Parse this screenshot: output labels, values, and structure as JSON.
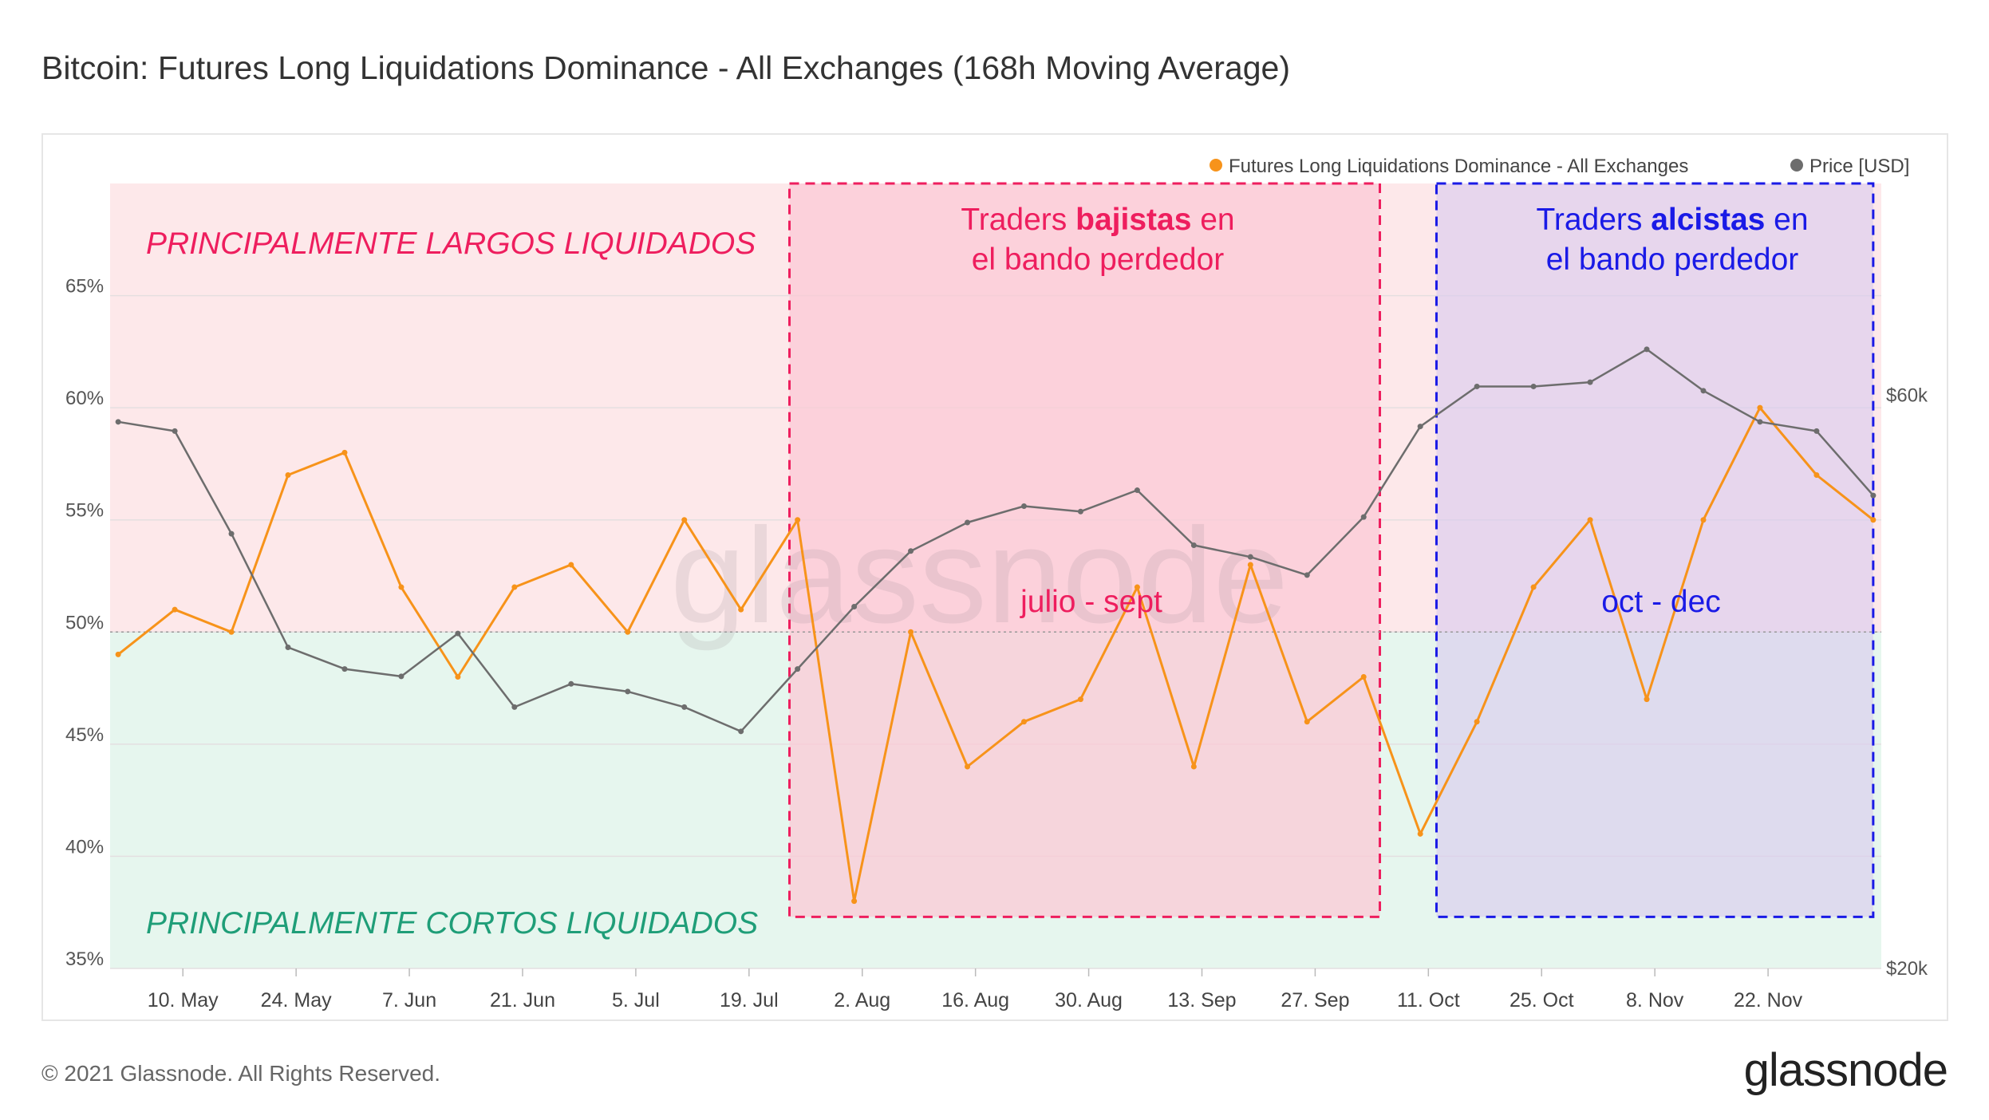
{
  "title": "Bitcoin: Futures Long Liquidations Dominance - All Exchanges (168h Moving Average)",
  "footer": "© 2021 Glassnode. All Rights Reserved.",
  "brand": "glassnode",
  "watermark": "glassnode",
  "colors": {
    "dominance": "#f7931a",
    "price": "#6d6d6d",
    "top_zone": "#fde8ea",
    "bottom_zone": "#e6f6ee",
    "bear_box_fill": "#fbcad6",
    "bear_box_border": "#ee1e5e",
    "bull_box_fill": "#d8c9ee",
    "bull_box_border": "#1a1ae6",
    "top_label": "#ee1e5e",
    "bottom_label": "#1f9e78",
    "bull_label": "#1a1ae6"
  },
  "legend": {
    "dominance": "Futures Long Liquidations Dominance - All Exchanges",
    "price": "Price [USD]"
  },
  "annotations": {
    "top_zone": "PRINCIPALMENTE LARGOS LIQUIDADOS",
    "bottom_zone": "PRINCIPALMENTE CORTOS LIQUIDADOS",
    "bear_box_line1_pre": "Traders ",
    "bear_box_line1_bold": "bajistas",
    "bear_box_line1_post": " en",
    "bear_box_line2": "el bando perdedor",
    "bear_period": "julio - sept",
    "bull_box_line1_pre": "Traders ",
    "bull_box_line1_bold": "alcistas",
    "bull_box_line1_post": " en",
    "bull_box_line2": "el bando perdedor",
    "bull_period": "oct - dec"
  },
  "chart_data": {
    "type": "line",
    "x_ticks": [
      "10. May",
      "24. May",
      "7. Jun",
      "21. Jun",
      "5. Jul",
      "19. Jul",
      "2. Aug",
      "16. Aug",
      "30. Aug",
      "13. Sep",
      "27. Sep",
      "11. Oct",
      "25. Oct",
      "8. Nov",
      "22. Nov"
    ],
    "y_left_ticks": [
      "35%",
      "40%",
      "45%",
      "50%",
      "55%",
      "60%",
      "65%"
    ],
    "y_left_range": [
      35,
      70
    ],
    "y_right_ticks": [
      "$20k",
      "$60k"
    ],
    "y_right_scale": "log",
    "y_right_range": [
      20000,
      90000
    ],
    "threshold": 50,
    "x": [
      "2021-05-02",
      "2021-05-09",
      "2021-05-16",
      "2021-05-23",
      "2021-05-30",
      "2021-06-06",
      "2021-06-13",
      "2021-06-20",
      "2021-06-27",
      "2021-07-04",
      "2021-07-11",
      "2021-07-18",
      "2021-07-25",
      "2021-08-01",
      "2021-08-08",
      "2021-08-15",
      "2021-08-22",
      "2021-08-29",
      "2021-09-05",
      "2021-09-12",
      "2021-09-19",
      "2021-09-26",
      "2021-10-03",
      "2021-10-10",
      "2021-10-17",
      "2021-10-24",
      "2021-10-31",
      "2021-11-07",
      "2021-11-14",
      "2021-11-21",
      "2021-11-28",
      "2021-12-05"
    ],
    "series": [
      {
        "name": "Futures Long Liquidations Dominance - All Exchanges",
        "axis": "left",
        "values": [
          49,
          51,
          50,
          57,
          58,
          52,
          48,
          52,
          53,
          50,
          55,
          51,
          55,
          38,
          50,
          44,
          46,
          47,
          52,
          44,
          53,
          46,
          48,
          41,
          46,
          52,
          55,
          47,
          55,
          60,
          57,
          55
        ]
      },
      {
        "name": "Price [USD]",
        "axis": "right",
        "values": [
          57000,
          56000,
          46000,
          37000,
          35500,
          35000,
          38000,
          33000,
          34500,
          34000,
          33000,
          31500,
          35500,
          40000,
          44500,
          47000,
          48500,
          48000,
          50000,
          45000,
          44000,
          42500,
          47500,
          56500,
          61000,
          61000,
          61500,
          65500,
          60500,
          57000,
          56000,
          49500
        ]
      }
    ],
    "regions": [
      {
        "label": "julio - sept",
        "from": "2021-07-24",
        "to": "2021-10-05"
      },
      {
        "label": "oct - dec",
        "from": "2021-10-12",
        "to": "2021-12-05"
      }
    ]
  }
}
